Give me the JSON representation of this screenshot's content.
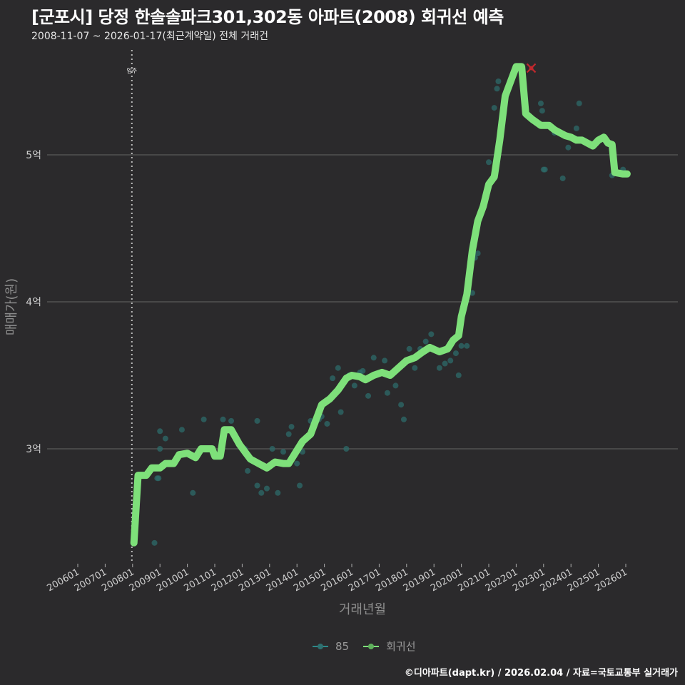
{
  "header": {
    "title": "[군포시] 당정 한솔솔파크301,302동 아파트(2008) 회귀선 예측",
    "subtitle": "2008-11-07 ~ 2026-01-17(최근계약일) 전체 거래건"
  },
  "colors": {
    "background": "#2b2a2c",
    "regression": "#7ee07a",
    "points": "#2e6b6a",
    "gridline": "#5a5a5a",
    "marker": "#c0282d",
    "vline": "#bbbbbb"
  },
  "annotation": {
    "label": "입주",
    "x_year": 2008.0
  },
  "legend": {
    "items": [
      {
        "label": "85",
        "color": "#2e8a8a"
      },
      {
        "label": "회귀선",
        "color": "#7ee07a"
      }
    ]
  },
  "footer": "©디아파트(dapt.kr) / 2026.02.04 / 자료=국토교통부 실거래가",
  "chart_data": {
    "type": "scatter",
    "title": "[군포시] 당정 한솔솔파크301,302동 아파트(2008) 회귀선 예측",
    "subtitle": "2008-11-07 ~ 2026-01-17(최근계약일) 전체 거래건",
    "xlabel": "거래년월",
    "ylabel": "매매가(원)",
    "x_ticks": [
      "200601",
      "200701",
      "200801",
      "200901",
      "201001",
      "201101",
      "201201",
      "201301",
      "201401",
      "201501",
      "201601",
      "201701",
      "201801",
      "201901",
      "202001",
      "202101",
      "202201",
      "202301",
      "202401",
      "202501",
      "202601"
    ],
    "y_ticks": [
      {
        "label": "3억",
        "value": 3.0
      },
      {
        "label": "4억",
        "value": 4.0
      },
      {
        "label": "5억",
        "value": 5.0
      }
    ],
    "xlim": [
      2006.0,
      2026.0
    ],
    "ylim": [
      2.2,
      5.8
    ],
    "grid": "horizontal",
    "legend_position": "bottom",
    "series": [
      {
        "name": "회귀선",
        "type": "line",
        "points": [
          [
            2008.05,
            2.36
          ],
          [
            2008.2,
            2.82
          ],
          [
            2008.5,
            2.82
          ],
          [
            2008.7,
            2.87
          ],
          [
            2009.0,
            2.87
          ],
          [
            2009.2,
            2.9
          ],
          [
            2009.5,
            2.9
          ],
          [
            2009.7,
            2.96
          ],
          [
            2010.0,
            2.97
          ],
          [
            2010.3,
            2.94
          ],
          [
            2010.5,
            3.0
          ],
          [
            2010.9,
            3.0
          ],
          [
            2011.0,
            2.95
          ],
          [
            2011.2,
            2.95
          ],
          [
            2011.35,
            3.13
          ],
          [
            2011.6,
            3.13
          ],
          [
            2011.9,
            3.03
          ],
          [
            2012.1,
            2.98
          ],
          [
            2012.3,
            2.93
          ],
          [
            2012.6,
            2.9
          ],
          [
            2012.9,
            2.87
          ],
          [
            2013.2,
            2.91
          ],
          [
            2013.5,
            2.9
          ],
          [
            2013.7,
            2.9
          ],
          [
            2013.9,
            2.96
          ],
          [
            2014.2,
            3.05
          ],
          [
            2014.5,
            3.1
          ],
          [
            2014.7,
            3.2
          ],
          [
            2014.9,
            3.3
          ],
          [
            2015.2,
            3.34
          ],
          [
            2015.5,
            3.4
          ],
          [
            2015.8,
            3.48
          ],
          [
            2016.0,
            3.5
          ],
          [
            2016.3,
            3.49
          ],
          [
            2016.5,
            3.47
          ],
          [
            2016.8,
            3.5
          ],
          [
            2017.1,
            3.52
          ],
          [
            2017.4,
            3.5
          ],
          [
            2017.7,
            3.55
          ],
          [
            2018.0,
            3.6
          ],
          [
            2018.3,
            3.62
          ],
          [
            2018.6,
            3.66
          ],
          [
            2018.85,
            3.69
          ],
          [
            2019.2,
            3.66
          ],
          [
            2019.5,
            3.68
          ],
          [
            2019.7,
            3.74
          ],
          [
            2019.9,
            3.77
          ],
          [
            2020.0,
            3.9
          ],
          [
            2020.2,
            4.05
          ],
          [
            2020.4,
            4.35
          ],
          [
            2020.6,
            4.55
          ],
          [
            2020.8,
            4.65
          ],
          [
            2021.0,
            4.8
          ],
          [
            2021.2,
            4.85
          ],
          [
            2021.4,
            5.1
          ],
          [
            2021.6,
            5.4
          ],
          [
            2021.8,
            5.5
          ],
          [
            2022.0,
            5.6
          ],
          [
            2022.2,
            5.6
          ],
          [
            2022.35,
            5.28
          ],
          [
            2022.6,
            5.24
          ],
          [
            2022.9,
            5.2
          ],
          [
            2023.2,
            5.2
          ],
          [
            2023.4,
            5.17
          ],
          [
            2023.6,
            5.15
          ],
          [
            2023.8,
            5.13
          ],
          [
            2024.0,
            5.12
          ],
          [
            2024.2,
            5.1
          ],
          [
            2024.4,
            5.1
          ],
          [
            2024.6,
            5.08
          ],
          [
            2024.8,
            5.06
          ],
          [
            2025.0,
            5.1
          ],
          [
            2025.2,
            5.12
          ],
          [
            2025.35,
            5.08
          ],
          [
            2025.5,
            5.07
          ],
          [
            2025.6,
            4.88
          ],
          [
            2025.9,
            4.87
          ],
          [
            2026.05,
            4.87
          ]
        ]
      },
      {
        "name": "85",
        "type": "scatter",
        "points": [
          [
            2008.8,
            2.36
          ],
          [
            2008.9,
            2.8
          ],
          [
            2008.95,
            2.8
          ],
          [
            2009.0,
            3.0
          ],
          [
            2009.0,
            3.12
          ],
          [
            2009.2,
            3.07
          ],
          [
            2009.8,
            3.13
          ],
          [
            2010.2,
            2.7
          ],
          [
            2010.6,
            3.2
          ],
          [
            2011.3,
            3.2
          ],
          [
            2011.6,
            3.19
          ],
          [
            2012.1,
            3.0
          ],
          [
            2012.2,
            2.85
          ],
          [
            2012.55,
            3.19
          ],
          [
            2012.55,
            2.75
          ],
          [
            2012.7,
            2.7
          ],
          [
            2012.9,
            2.73
          ],
          [
            2013.1,
            3.0
          ],
          [
            2013.3,
            2.7
          ],
          [
            2013.5,
            2.98
          ],
          [
            2013.7,
            3.1
          ],
          [
            2013.8,
            3.15
          ],
          [
            2014.0,
            2.9
          ],
          [
            2014.1,
            2.75
          ],
          [
            2014.2,
            2.98
          ],
          [
            2014.5,
            3.19
          ],
          [
            2014.8,
            3.2
          ],
          [
            2014.9,
            3.22
          ],
          [
            2015.1,
            3.17
          ],
          [
            2015.3,
            3.48
          ],
          [
            2015.5,
            3.55
          ],
          [
            2015.6,
            3.25
          ],
          [
            2015.8,
            3.0
          ],
          [
            2015.9,
            3.5
          ],
          [
            2016.1,
            3.43
          ],
          [
            2016.3,
            3.52
          ],
          [
            2016.4,
            3.53
          ],
          [
            2016.6,
            3.36
          ],
          [
            2016.8,
            3.62
          ],
          [
            2017.2,
            3.6
          ],
          [
            2017.3,
            3.38
          ],
          [
            2017.6,
            3.43
          ],
          [
            2017.8,
            3.3
          ],
          [
            2017.9,
            3.2
          ],
          [
            2018.1,
            3.68
          ],
          [
            2018.3,
            3.55
          ],
          [
            2018.5,
            3.68
          ],
          [
            2018.7,
            3.73
          ],
          [
            2018.9,
            3.78
          ],
          [
            2019.2,
            3.55
          ],
          [
            2019.4,
            3.58
          ],
          [
            2019.6,
            3.6
          ],
          [
            2019.8,
            3.65
          ],
          [
            2019.9,
            3.5
          ],
          [
            2020.0,
            3.7
          ],
          [
            2020.2,
            3.7
          ],
          [
            2020.4,
            4.06
          ],
          [
            2020.5,
            4.3
          ],
          [
            2020.6,
            4.33
          ],
          [
            2021.0,
            4.95
          ],
          [
            2021.2,
            5.32
          ],
          [
            2021.3,
            5.45
          ],
          [
            2021.35,
            5.5
          ],
          [
            2022.9,
            5.35
          ],
          [
            2022.95,
            5.3
          ],
          [
            2023.0,
            4.9
          ],
          [
            2023.05,
            4.9
          ],
          [
            2023.4,
            5.15
          ],
          [
            2023.7,
            4.84
          ],
          [
            2023.9,
            5.05
          ],
          [
            2024.2,
            5.18
          ],
          [
            2024.3,
            5.35
          ],
          [
            2025.5,
            4.86
          ],
          [
            2025.9,
            4.9
          ]
        ]
      }
    ],
    "highlight": {
      "type": "x-marker",
      "x": 2022.55,
      "y": 5.59,
      "color": "#c0282d"
    }
  }
}
